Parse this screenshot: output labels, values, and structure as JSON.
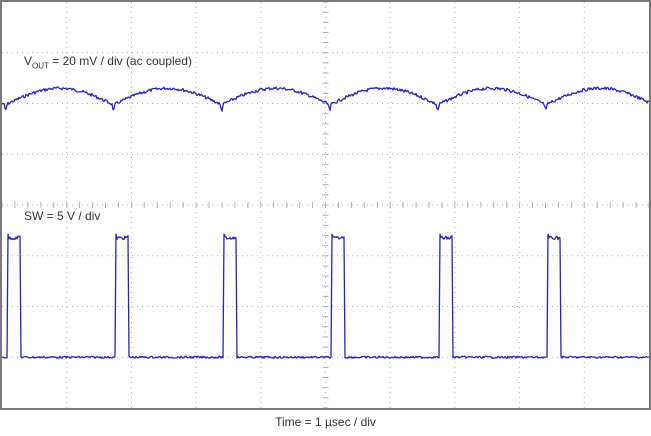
{
  "figure": {
    "background": "#ffffff",
    "border_color": "#7a7a7a"
  },
  "labels": {
    "vout": {
      "prefix": "V",
      "subscript": "OUT",
      "rest": " = 20 mV / div (ac coupled)"
    },
    "sw": "SW = 5 V / div",
    "time_axis": "Time = 1 µsec / div"
  },
  "chart_data": {
    "type": "line",
    "title": "",
    "xlabel": "Time = 1 µsec / div",
    "time_per_div_us": 1,
    "x_divisions": 10,
    "y_divisions": 8,
    "grid": "dotted",
    "grid_color": "#b0b0b0",
    "trace_color": "#2323cd",
    "series": [
      {
        "id": "vout",
        "name": "VOUT",
        "label": "VOUT = 20 mV / div (ac coupled)",
        "scale_per_div": "20 mV",
        "coupling": "ac coupled",
        "waveform": "ripple",
        "period_us": 1.67,
        "phase_us": 0.08,
        "peak_div": 1.7,
        "valley_div": 2.01,
        "ripple_pp_mV": 6,
        "notch_depth_div": 0.13,
        "noise_div": 0.03,
        "color": "#2323cd"
      },
      {
        "id": "sw",
        "name": "SW",
        "label": "SW = 5 V / div",
        "scale_per_div": "5 V",
        "waveform": "pulse",
        "period_us": 1.67,
        "first_edge_us": 0.08,
        "pulse_width_us": 0.2,
        "base_div": 7.0,
        "high_div": 4.65,
        "pulse_amplitude_V": 11.8,
        "duty_percent": 12,
        "noise_div": 0.02,
        "color": "#2323cd"
      }
    ]
  }
}
